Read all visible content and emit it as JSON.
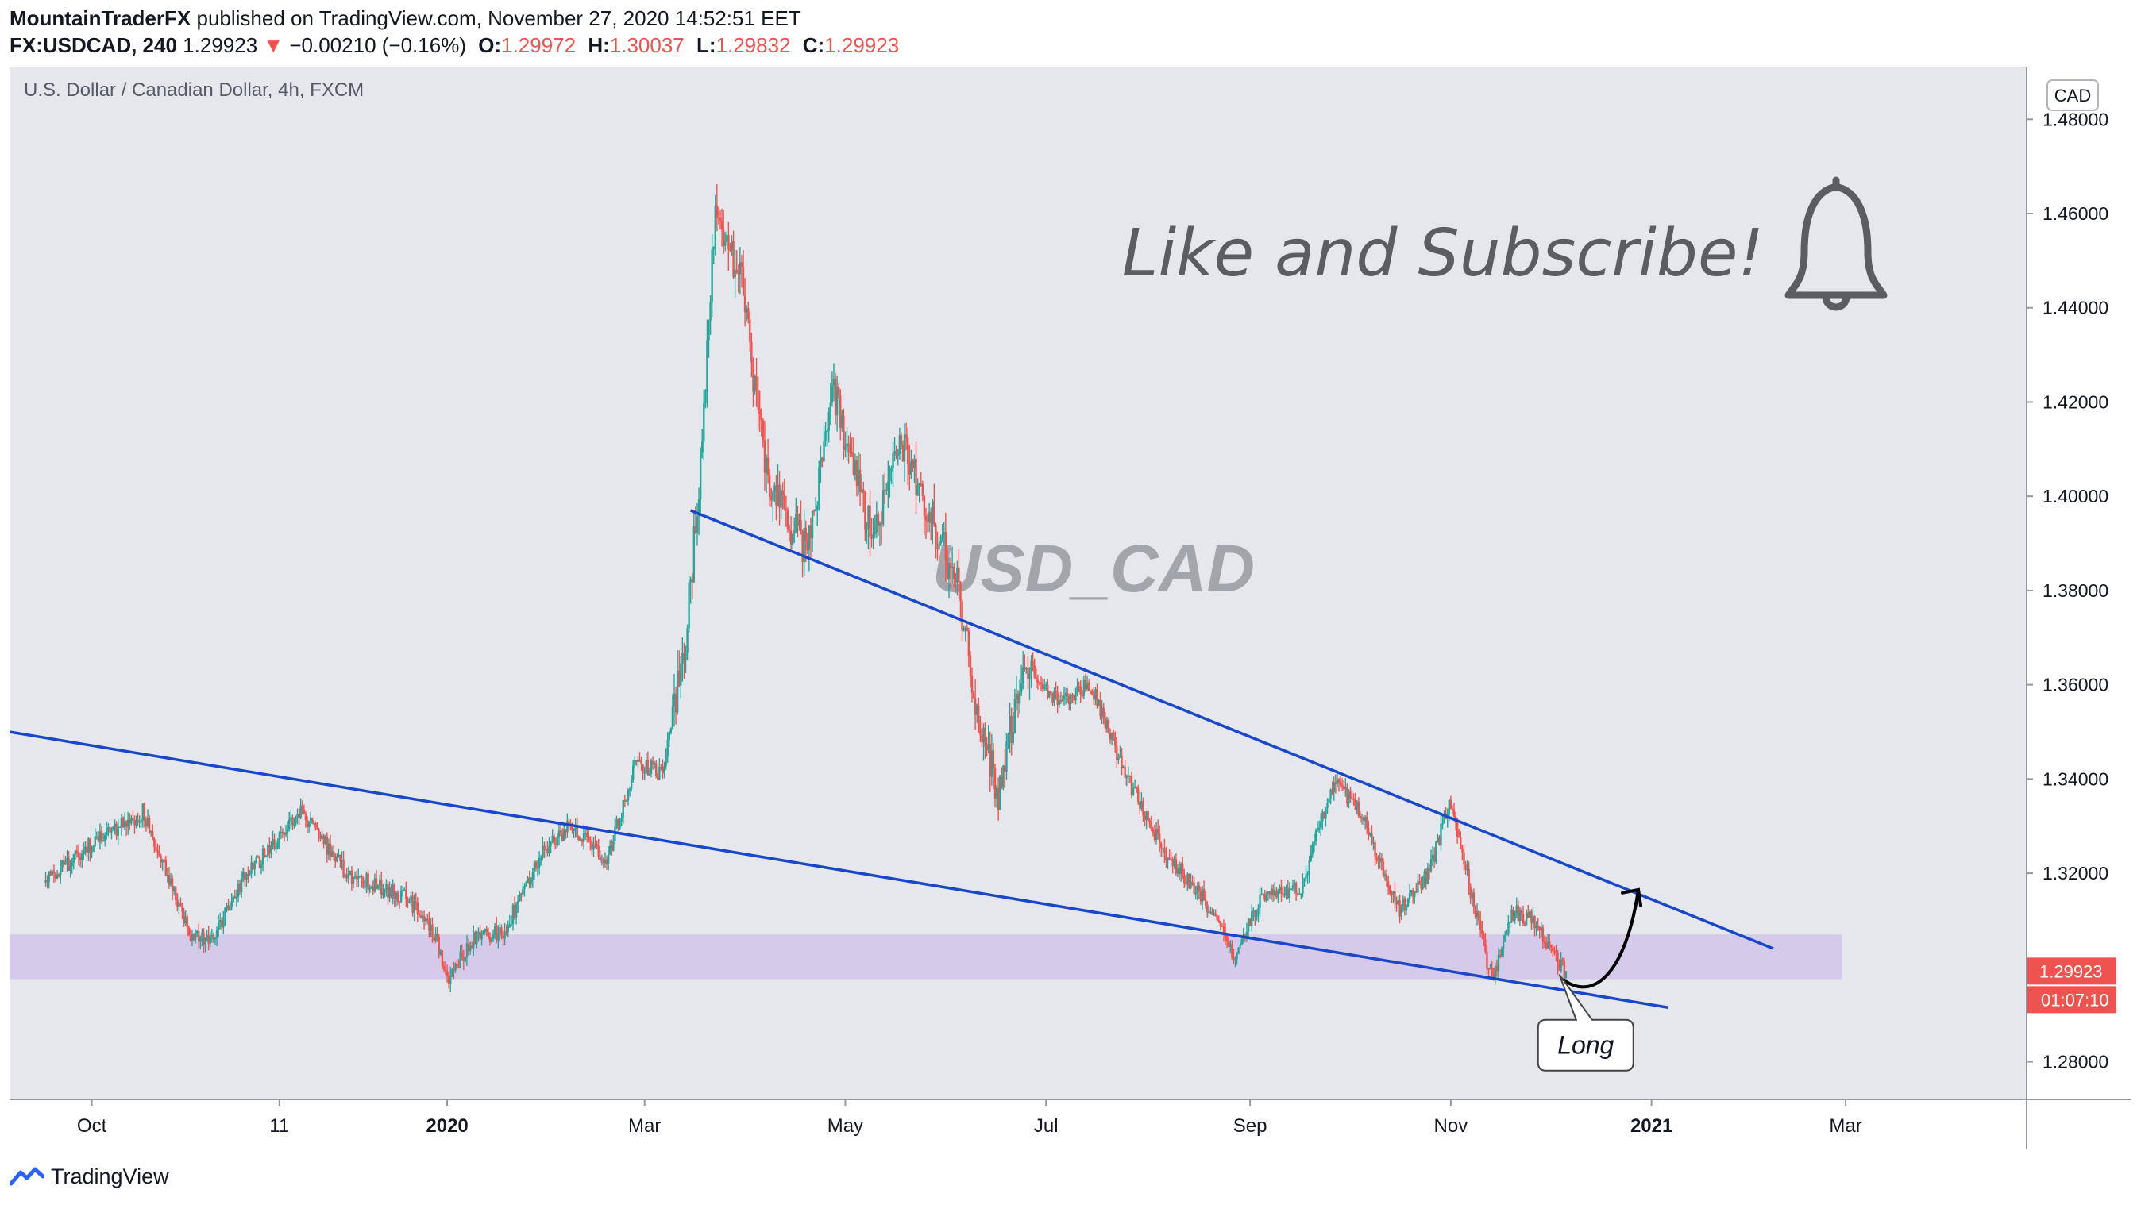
{
  "header": {
    "author": "MountainTraderFX",
    "published_text": "published on TradingView.com, November 27, 2020 14:52:51 EET",
    "symbol": "FX:USDCAD, 240",
    "last": "1.29923",
    "down_arrow": "▼",
    "change": "−0.00210 (−0.16%)",
    "open_label": "O:",
    "open": "1.29972",
    "high_label": "H:",
    "high": "1.30037",
    "low_label": "L:",
    "low": "1.29832",
    "close_label": "C:",
    "close": "1.29923"
  },
  "chart_data": {
    "type": "candlestick",
    "title": "U.S. Dollar / Canadian Dollar, 4h, FXCM",
    "currency": "CAD",
    "watermark": "USD_CAD",
    "promo_text": "Like and Subscribe!",
    "ylim": [
      1.272,
      1.491
    ],
    "y_ticks": [
      1.28,
      1.3,
      1.32,
      1.34,
      1.36,
      1.38,
      1.4,
      1.42,
      1.44,
      1.46,
      1.48
    ],
    "y_tick_labels": [
      "1.28000",
      "1.30000",
      "1.32000",
      "1.34000",
      "1.36000",
      "1.38000",
      "1.40000",
      "1.42000",
      "1.44000",
      "1.46000",
      "1.48000"
    ],
    "x_ticks": [
      {
        "label": "Oct",
        "bold": false,
        "day": 14
      },
      {
        "label": "11",
        "bold": false,
        "day": 71
      },
      {
        "label": "2020",
        "bold": true,
        "day": 122
      },
      {
        "label": "Mar",
        "bold": false,
        "day": 182
      },
      {
        "label": "May",
        "bold": false,
        "day": 243
      },
      {
        "label": "Jul",
        "bold": false,
        "day": 304
      },
      {
        "label": "Sep",
        "bold": false,
        "day": 366
      },
      {
        "label": "Nov",
        "bold": false,
        "day": 427
      },
      {
        "label": "2021",
        "bold": true,
        "day": 488
      },
      {
        "label": "Mar",
        "bold": false,
        "day": 547
      }
    ],
    "x_range_days": [
      -11,
      602
    ],
    "price_path": [
      {
        "day": 0,
        "price": 1.318
      },
      {
        "day": 14,
        "price": 1.326
      },
      {
        "day": 30,
        "price": 1.333
      },
      {
        "day": 45,
        "price": 1.306
      },
      {
        "day": 52,
        "price": 1.307
      },
      {
        "day": 60,
        "price": 1.318
      },
      {
        "day": 78,
        "price": 1.333
      },
      {
        "day": 92,
        "price": 1.32
      },
      {
        "day": 110,
        "price": 1.315
      },
      {
        "day": 119,
        "price": 1.306
      },
      {
        "day": 123,
        "price": 1.298
      },
      {
        "day": 130,
        "price": 1.306
      },
      {
        "day": 140,
        "price": 1.308
      },
      {
        "day": 152,
        "price": 1.325
      },
      {
        "day": 160,
        "price": 1.33
      },
      {
        "day": 171,
        "price": 1.323
      },
      {
        "day": 180,
        "price": 1.344
      },
      {
        "day": 188,
        "price": 1.341
      },
      {
        "day": 195,
        "price": 1.37
      },
      {
        "day": 200,
        "price": 1.41
      },
      {
        "day": 204,
        "price": 1.462
      },
      {
        "day": 212,
        "price": 1.445
      },
      {
        "day": 220,
        "price": 1.402
      },
      {
        "day": 232,
        "price": 1.388
      },
      {
        "day": 240,
        "price": 1.422
      },
      {
        "day": 252,
        "price": 1.39
      },
      {
        "day": 260,
        "price": 1.412
      },
      {
        "day": 270,
        "price": 1.395
      },
      {
        "day": 278,
        "price": 1.38
      },
      {
        "day": 284,
        "price": 1.352
      },
      {
        "day": 290,
        "price": 1.337
      },
      {
        "day": 298,
        "price": 1.366
      },
      {
        "day": 308,
        "price": 1.356
      },
      {
        "day": 318,
        "price": 1.36
      },
      {
        "day": 328,
        "price": 1.342
      },
      {
        "day": 340,
        "price": 1.325
      },
      {
        "day": 352,
        "price": 1.315
      },
      {
        "day": 362,
        "price": 1.302
      },
      {
        "day": 370,
        "price": 1.315
      },
      {
        "day": 382,
        "price": 1.317
      },
      {
        "day": 392,
        "price": 1.34
      },
      {
        "day": 400,
        "price": 1.333
      },
      {
        "day": 412,
        "price": 1.312
      },
      {
        "day": 421,
        "price": 1.32
      },
      {
        "day": 427,
        "price": 1.335
      },
      {
        "day": 434,
        "price": 1.315
      },
      {
        "day": 440,
        "price": 1.297
      },
      {
        "day": 446,
        "price": 1.312
      },
      {
        "day": 452,
        "price": 1.31
      },
      {
        "day": 458,
        "price": 1.304
      },
      {
        "day": 462,
        "price": 1.2992
      }
    ],
    "trendlines": [
      {
        "name": "lower-trendline",
        "x1": -11,
        "y1": 1.35,
        "x2": 493,
        "y2": 1.2915
      },
      {
        "name": "upper-trendline",
        "x1": 196,
        "y1": 1.397,
        "x2": 525,
        "y2": 1.304
      }
    ],
    "support_zone": [
      1.2975,
      1.307
    ],
    "support_zone_end_day": 546,
    "projection_arrow": {
      "from_day": 461,
      "from_price": 1.2975,
      "to_day": 484,
      "to_price": 1.3165
    },
    "callout": {
      "text": "Long",
      "day": 468,
      "price": 1.2835
    },
    "current_price_label": "1.29923",
    "countdown_label": "01:07:10",
    "up_color": "#26a69a",
    "down_color": "#ef5350",
    "trendline_color": "#1848c8",
    "zone_color": "#d1c4e9"
  },
  "footer": {
    "brand": "TradingView"
  }
}
